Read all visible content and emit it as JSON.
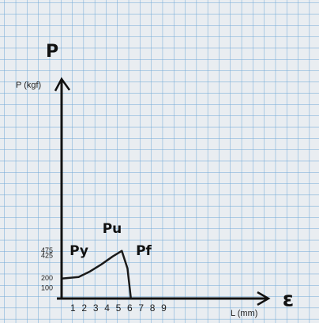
{
  "chart_data": {
    "type": "line",
    "y_symbol": "P",
    "x_symbol": "ε",
    "y_label": "P (kgf)",
    "x_label": "L (mm)",
    "annotations": [
      "Py",
      "Pu",
      "Pf"
    ],
    "x": [
      0.1,
      1.5,
      2.5,
      3.5,
      4.5,
      5.3,
      5.8,
      6.1
    ],
    "series": [
      {
        "color": "#1a1a1a",
        "values": [
          200,
          215,
          270,
          340,
          420,
          475,
          300,
          0
        ]
      }
    ],
    "xlim": [
      0,
      18
    ],
    "ylim": [
      0,
      2150
    ],
    "xticks": [
      1,
      2,
      3,
      4,
      5,
      6,
      7,
      8,
      9
    ],
    "yticks": [
      100,
      200,
      425,
      475
    ]
  }
}
